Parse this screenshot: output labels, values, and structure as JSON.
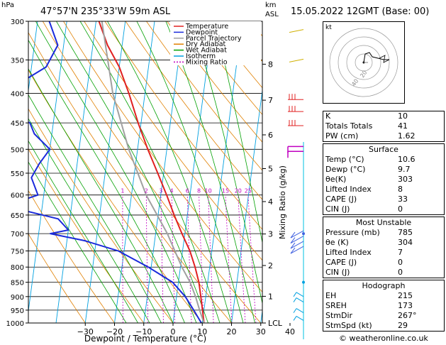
{
  "header": {
    "hpa_unit": "hPa",
    "location": "47°57'N  235°33'W  59m  ASL",
    "km_unit": "km",
    "asl_unit": "ASL",
    "datetime": "15.05.2022  12GMT  (Base: 00)"
  },
  "xaxis_label": "Dewpoint / Temperature (°C)",
  "right_axis_label": "Mixing Ratio (g/kg)",
  "copyright": "© weatheronline.co.uk",
  "legend": [
    {
      "label": "Temperature",
      "color": "#e02020",
      "dash": "none"
    },
    {
      "label": "Dewpoint",
      "color": "#1a2adb",
      "dash": "none"
    },
    {
      "label": "Parcel Trajectory",
      "color": "#a0a0a0",
      "dash": "none"
    },
    {
      "label": "Dry Adiabat",
      "color": "#e08000",
      "dash": "none"
    },
    {
      "label": "Wet Adiabat",
      "color": "#00a000",
      "dash": "none"
    },
    {
      "label": "Isotherm",
      "color": "#00a0e0",
      "dash": "none"
    },
    {
      "label": "Mixing Ratio",
      "color": "#c000c0",
      "dash": "2,2"
    }
  ],
  "chart_data": {
    "type": "line",
    "pressure_levels": [
      300,
      350,
      400,
      450,
      500,
      550,
      600,
      650,
      700,
      750,
      800,
      850,
      900,
      950,
      1000
    ],
    "pressure_tick_labels": [
      "300",
      "350",
      "400",
      "450",
      "500",
      "550",
      "600",
      "650",
      "700",
      "750",
      "800",
      "850",
      "900",
      "950",
      "1000"
    ],
    "x_ticks": [
      -30,
      -20,
      -10,
      0,
      10,
      20,
      30,
      40
    ],
    "x_tick_labels": [
      "−30",
      "−20",
      "−10",
      "0",
      "10",
      "20",
      "30",
      "40"
    ],
    "xlim": [
      -40,
      40
    ],
    "ylim": [
      1000,
      300
    ],
    "yscale": "log",
    "km_ticks": [
      {
        "label": "8",
        "p": 356
      },
      {
        "label": "7",
        "p": 411
      },
      {
        "label": "6",
        "p": 472
      },
      {
        "label": "5",
        "p": 540
      },
      {
        "label": "4",
        "p": 616
      },
      {
        "label": "3",
        "p": 701
      },
      {
        "label": "2",
        "p": 795
      },
      {
        "label": "1",
        "p": 899
      },
      {
        "label": "LCL",
        "p": 1000
      }
    ],
    "mixing_ratio_labels": [
      "1",
      "2",
      "3",
      "4",
      "6",
      "8",
      "10",
      "15",
      "20",
      "25"
    ],
    "mixing_ratio_values": [
      1,
      2,
      3,
      4,
      6,
      8,
      10,
      15,
      20,
      25
    ],
    "series": [
      {
        "name": "Temperature",
        "points": [
          [
            300,
            -39
          ],
          [
            330,
            -35
          ],
          [
            360,
            -30
          ],
          [
            400,
            -25.5
          ],
          [
            450,
            -21
          ],
          [
            500,
            -16.5
          ],
          [
            550,
            -12
          ],
          [
            600,
            -8
          ],
          [
            650,
            -4.5
          ],
          [
            700,
            -1
          ],
          [
            750,
            2.5
          ],
          [
            800,
            5
          ],
          [
            850,
            7
          ],
          [
            900,
            8.3
          ],
          [
            950,
            9.5
          ],
          [
            1000,
            10.6
          ]
        ]
      },
      {
        "name": "Dewpoint",
        "points": [
          [
            300,
            -56
          ],
          [
            330,
            -52
          ],
          [
            360,
            -55
          ],
          [
            380,
            -62
          ],
          [
            400,
            -66
          ],
          [
            420,
            -73
          ],
          [
            440,
            -62
          ],
          [
            450,
            -58
          ],
          [
            470,
            -56
          ],
          [
            500,
            -50
          ],
          [
            530,
            -53
          ],
          [
            560,
            -55
          ],
          [
            600,
            -52
          ],
          [
            620,
            -60
          ],
          [
            640,
            -55
          ],
          [
            660,
            -44
          ],
          [
            690,
            -40
          ],
          [
            700,
            -46
          ],
          [
            720,
            -34
          ],
          [
            750,
            -22
          ],
          [
            800,
            -11
          ],
          [
            850,
            -2
          ],
          [
            900,
            3
          ],
          [
            950,
            6.5
          ],
          [
            1000,
            9.7
          ]
        ]
      },
      {
        "name": "Parcel Trajectory",
        "points": [
          [
            300,
            -38
          ],
          [
            400,
            -31
          ],
          [
            500,
            -23
          ],
          [
            600,
            -15
          ],
          [
            700,
            -6
          ],
          [
            800,
            0.5
          ],
          [
            850,
            4
          ],
          [
            900,
            6.5
          ],
          [
            950,
            8.5
          ],
          [
            1000,
            10.6
          ]
        ]
      }
    ],
    "hodograph": {
      "ring_labels": [
        "20",
        "40"
      ],
      "unit_label": "kt"
    }
  },
  "indices": {
    "top": [
      {
        "label": "K",
        "value": "10"
      },
      {
        "label": "Totals Totals",
        "value": "41"
      },
      {
        "label": "PW (cm)",
        "value": "1.62"
      }
    ],
    "surface": {
      "title": "Surface",
      "rows": [
        {
          "label": "Temp (°C)",
          "value": "10.6"
        },
        {
          "label": "Dewp (°C)",
          "value": "9.7"
        },
        {
          "label": "θe(K)",
          "value": "303"
        },
        {
          "label": "Lifted Index",
          "value": "8"
        },
        {
          "label": "CAPE (J)",
          "value": "33"
        },
        {
          "label": "CIN (J)",
          "value": "0"
        }
      ]
    },
    "most_unstable": {
      "title": "Most Unstable",
      "rows": [
        {
          "label": "Pressure (mb)",
          "value": "785"
        },
        {
          "label": "θe (K)",
          "value": "304"
        },
        {
          "label": "Lifted Index",
          "value": "7"
        },
        {
          "label": "CAPE (J)",
          "value": "0"
        },
        {
          "label": "CIN (J)",
          "value": "0"
        }
      ]
    },
    "hodograph": {
      "title": "Hodograph",
      "rows": [
        {
          "label": "EH",
          "value": "215"
        },
        {
          "label": "SREH",
          "value": "173"
        },
        {
          "label": "StmDir",
          "value": "267°"
        },
        {
          "label": "StmSpd (kt)",
          "value": "29"
        }
      ]
    }
  }
}
